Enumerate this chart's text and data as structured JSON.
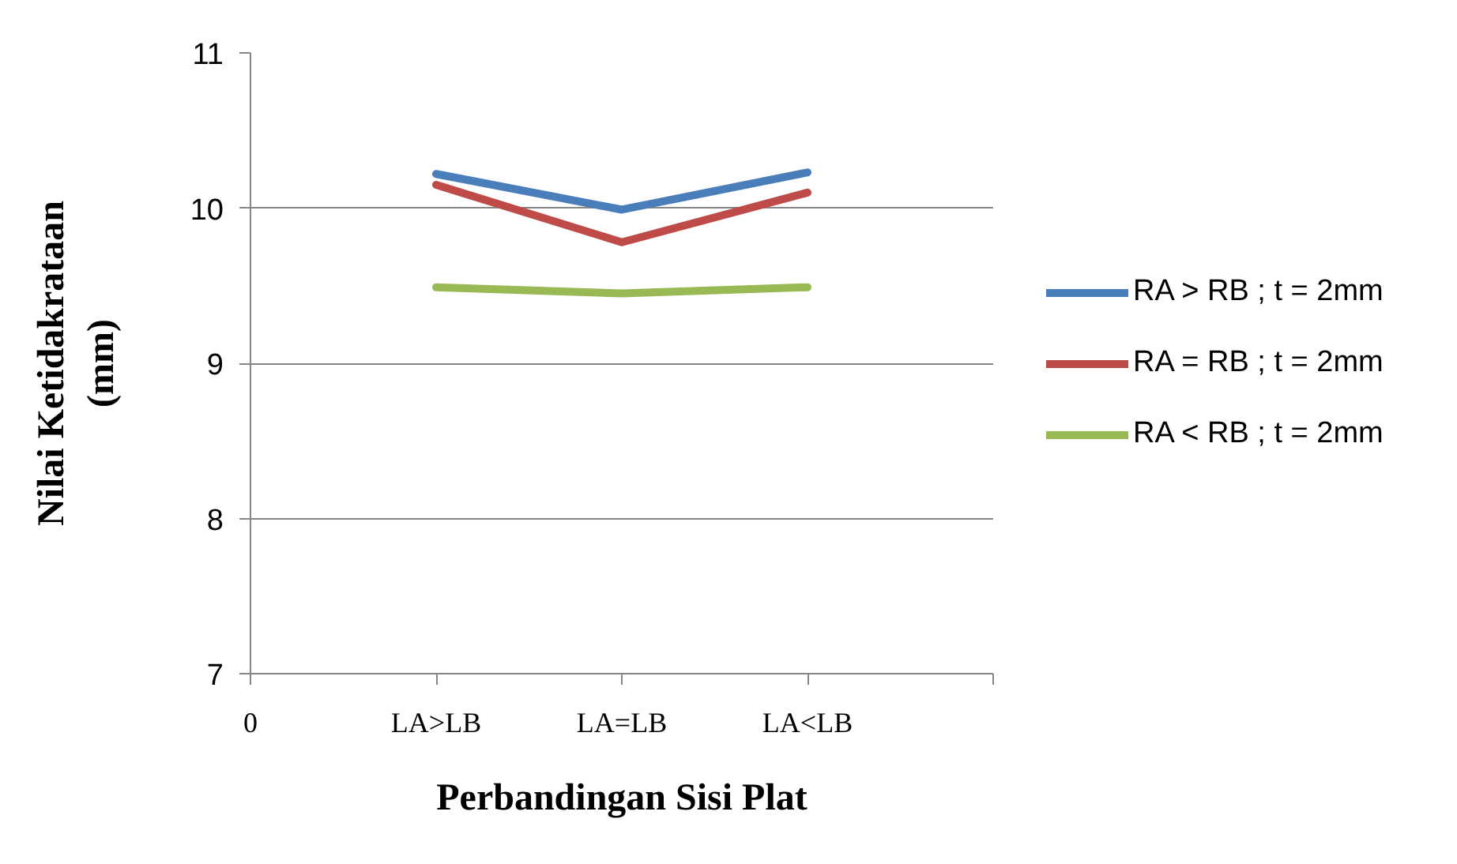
{
  "chart_data": {
    "type": "line",
    "xlabel": "Perbandingan Sisi Plat",
    "ylabel": "Nilai Ketidakrataan\n(mm)",
    "categories": [
      "0",
      "LA>LB",
      "LA=LB",
      "LA<LB",
      null
    ],
    "ylim": [
      7,
      11
    ],
    "yticks": [
      7,
      8,
      9,
      10,
      11
    ],
    "grid": "y",
    "legend": "right",
    "line_style": "solid",
    "series": [
      {
        "name": "RA > RB ; t = 2mm",
        "color": "#4a7ebb",
        "values": [
          null,
          10.22,
          9.99,
          10.23,
          null
        ]
      },
      {
        "name": "RA = RB ; t = 2mm",
        "color": "#be4b48",
        "values": [
          null,
          10.15,
          9.78,
          10.1,
          null
        ]
      },
      {
        "name": "RA < RB ; t = 2mm",
        "color": "#98b954",
        "values": [
          null,
          9.49,
          9.45,
          9.49,
          null
        ]
      }
    ]
  }
}
